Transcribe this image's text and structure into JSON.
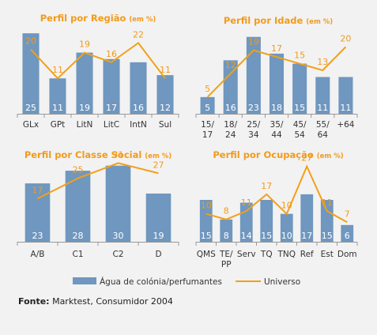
{
  "colors": {
    "bar": "#6f97bf",
    "line": "#f2a019",
    "axis": "#999999"
  },
  "legend": {
    "bars": "Água de colónia/perfumantes",
    "line": "Universo"
  },
  "source": {
    "label": "Fonte:",
    "text": " Marktest, Consumidor 2004"
  },
  "chart_data": [
    {
      "type": "bar",
      "title": "Perfil por Região",
      "unit": "(em %)",
      "categories": [
        [
          "GLx"
        ],
        [
          "GPt"
        ],
        [
          "LitN"
        ],
        [
          "LitC"
        ],
        [
          "IntN"
        ],
        [
          "Sul"
        ]
      ],
      "series": [
        {
          "name": "Água de colónia/perfumantes",
          "kind": "bar",
          "values": [
            25,
            11,
            19,
            17,
            16,
            12
          ]
        },
        {
          "name": "Universo",
          "kind": "line",
          "values": [
            20,
            11,
            19,
            16,
            22,
            11
          ]
        }
      ],
      "ylim": [
        0,
        27
      ]
    },
    {
      "type": "bar",
      "title": "Perfil por Idade",
      "unit": "(em %)",
      "categories": [
        [
          "15/",
          "17"
        ],
        [
          "18/",
          "24"
        ],
        [
          "25/",
          "34"
        ],
        [
          "35/",
          "44"
        ],
        [
          "45/",
          "54"
        ],
        [
          "55/",
          "64"
        ],
        [
          "+64"
        ]
      ],
      "series": [
        {
          "name": "Água de colónia/perfumantes",
          "kind": "bar",
          "values": [
            5,
            16,
            23,
            18,
            15,
            11,
            11
          ]
        },
        {
          "name": "Universo",
          "kind": "line",
          "values": [
            5,
            12,
            19,
            17,
            15,
            13,
            20
          ]
        }
      ],
      "ylim": [
        0,
        26
      ]
    },
    {
      "type": "bar",
      "title": "Perfil por Classe Social",
      "unit": "(em %)",
      "categories": [
        [
          "A/B"
        ],
        [
          "C1"
        ],
        [
          "C2"
        ],
        [
          "D"
        ]
      ],
      "series": [
        {
          "name": "Água de colónia/perfumantes",
          "kind": "bar",
          "values": [
            23,
            28,
            30,
            19
          ]
        },
        {
          "name": "Universo",
          "kind": "line",
          "values": [
            17,
            25,
            31,
            27
          ]
        }
      ],
      "ylim": [
        0,
        33
      ]
    },
    {
      "type": "bar",
      "title": "Perfil por Ocupação",
      "unit": "(em %)",
      "categories": [
        [
          "QMS"
        ],
        [
          "TE/",
          "PP"
        ],
        [
          "Serv"
        ],
        [
          "TQ"
        ],
        [
          "TNQ"
        ],
        [
          "Ref"
        ],
        [
          "Est"
        ],
        [
          "Dom"
        ]
      ],
      "series": [
        {
          "name": "Água de colónia/perfumantes",
          "kind": "bar",
          "values": [
            15,
            8,
            14,
            15,
            10,
            17,
            15,
            6
          ]
        },
        {
          "name": "Universo",
          "kind": "line",
          "values": [
            10,
            8,
            11,
            17,
            10,
            27,
            11,
            7
          ]
        }
      ],
      "ylim": [
        0,
        30
      ]
    }
  ]
}
